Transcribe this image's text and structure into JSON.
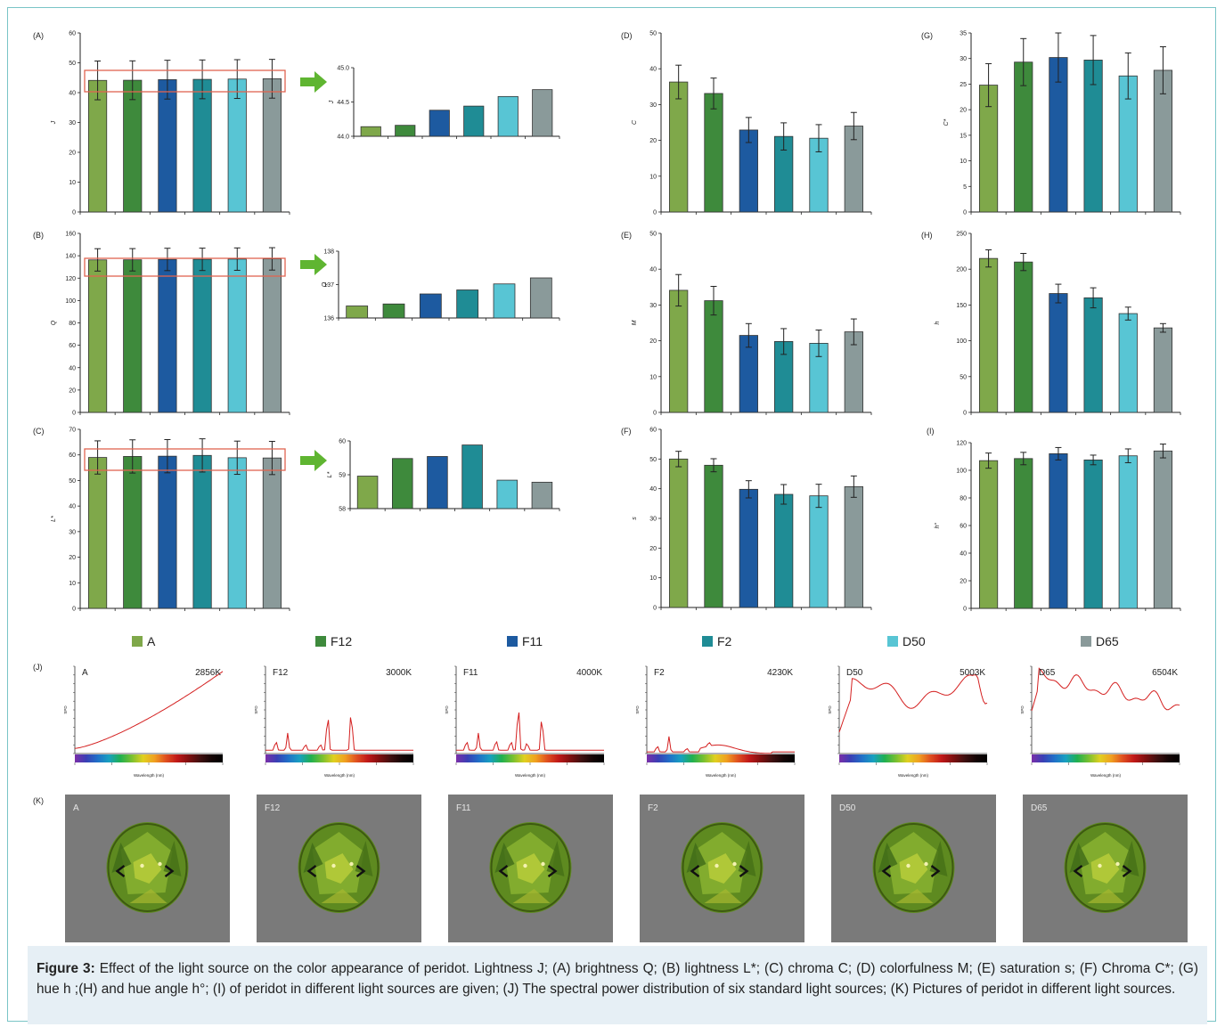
{
  "colors": {
    "A": "#7fa84a",
    "F12": "#3e8a3c",
    "F11": "#1d5aa0",
    "F2": "#1f8c95",
    "D50": "#58c5d4",
    "D65": "#8a9a9a"
  },
  "legend": [
    "A",
    "F12",
    "F11",
    "F2",
    "D50",
    "D65"
  ],
  "caption": {
    "label": "Figure 3:",
    "text": "Effect of the light source on the color appearance of peridot. Lightness J; (A) brightness Q; (B) lightness L*; (C) chroma C; (D) colorfulness M; (E) saturation s; (F) Chroma C*; (G) hue h ;(H) and hue angle h°; (I) of peridot in different light sources are given; (J) The spectral power distribution of six standard light sources; (K) Pictures of peridot in different light sources."
  },
  "chart_data": [
    {
      "panel": "(A)",
      "type": "bar",
      "ylabel": "J",
      "categories": [
        "A",
        "F12",
        "F11",
        "F2",
        "D50",
        "D65"
      ],
      "values": [
        44.1,
        44.15,
        44.35,
        44.45,
        44.55,
        44.65
      ],
      "errors": [
        6.5,
        6.5,
        6.5,
        6.5,
        6.5,
        6.5
      ],
      "ylim": [
        0,
        60
      ],
      "ticks": [
        0,
        10,
        20,
        30,
        40,
        50,
        60
      ]
    },
    {
      "panel": "(A-inset)",
      "type": "bar",
      "ylabel": "J",
      "categories": [
        "A",
        "F12",
        "F11",
        "F2",
        "D50",
        "D65"
      ],
      "values": [
        44.14,
        44.16,
        44.38,
        44.44,
        44.58,
        44.68
      ],
      "ylim": [
        44.0,
        45.0
      ],
      "ticks": [
        44.0,
        44.5,
        45.0
      ]
    },
    {
      "panel": "(B)",
      "type": "bar",
      "ylabel": "Q",
      "categories": [
        "A",
        "F12",
        "F11",
        "F2",
        "D50",
        "D65"
      ],
      "values": [
        136.3,
        136.4,
        136.7,
        136.8,
        137.0,
        137.2
      ],
      "errors": [
        10,
        10,
        10,
        10,
        10,
        10
      ],
      "ylim": [
        0,
        160
      ],
      "ticks": [
        0,
        20,
        40,
        60,
        80,
        100,
        120,
        140,
        160
      ]
    },
    {
      "panel": "(B-inset)",
      "type": "bar",
      "ylabel": "Q",
      "categories": [
        "A",
        "F12",
        "F11",
        "F2",
        "D50",
        "D65"
      ],
      "values": [
        136.36,
        136.42,
        136.72,
        136.84,
        137.02,
        137.2
      ],
      "ylim": [
        136,
        138
      ],
      "ticks": [
        136,
        137,
        138
      ]
    },
    {
      "panel": "(C)",
      "type": "bar",
      "ylabel": "L*",
      "categories": [
        "A",
        "F12",
        "F11",
        "F2",
        "D50",
        "D65"
      ],
      "values": [
        59.0,
        59.4,
        59.5,
        59.8,
        58.9,
        58.8
      ],
      "errors": [
        6.5,
        6.5,
        6.5,
        6.5,
        6.5,
        6.5
      ],
      "ylim": [
        0,
        70
      ],
      "ticks": [
        0,
        10,
        20,
        30,
        40,
        50,
        60,
        70
      ]
    },
    {
      "panel": "(C-inset)",
      "type": "bar",
      "ylabel": "L*",
      "categories": [
        "A",
        "F12",
        "F11",
        "F2",
        "D50",
        "D65"
      ],
      "values": [
        58.96,
        59.48,
        59.54,
        59.88,
        58.84,
        58.78
      ],
      "ylim": [
        58,
        60
      ],
      "ticks": [
        58,
        59,
        60
      ]
    },
    {
      "panel": "(D)",
      "type": "bar",
      "ylabel": "C",
      "categories": [
        "A",
        "F12",
        "F11",
        "F2",
        "D50",
        "D65"
      ],
      "values": [
        36.3,
        33.1,
        22.9,
        21.1,
        20.6,
        24.0
      ],
      "errors": [
        4.7,
        4.3,
        3.5,
        3.8,
        3.8,
        3.8
      ],
      "ylim": [
        0,
        50
      ],
      "ticks": [
        0,
        10,
        20,
        30,
        40,
        50
      ]
    },
    {
      "panel": "(E)",
      "type": "bar",
      "ylabel": "M",
      "categories": [
        "A",
        "F12",
        "F11",
        "F2",
        "D50",
        "D65"
      ],
      "values": [
        34.1,
        31.2,
        21.5,
        19.8,
        19.3,
        22.5
      ],
      "errors": [
        4.4,
        4.0,
        3.3,
        3.6,
        3.7,
        3.6
      ],
      "ylim": [
        0,
        50
      ],
      "ticks": [
        0,
        10,
        20,
        30,
        40,
        50
      ]
    },
    {
      "panel": "(F)",
      "type": "bar",
      "ylabel": "s",
      "categories": [
        "A",
        "F12",
        "F11",
        "F2",
        "D50",
        "D65"
      ],
      "values": [
        50.0,
        47.9,
        39.8,
        38.1,
        37.6,
        40.7
      ],
      "errors": [
        2.6,
        2.2,
        2.9,
        3.3,
        3.9,
        3.6
      ],
      "ylim": [
        0,
        60
      ],
      "ticks": [
        0,
        10,
        20,
        30,
        40,
        50,
        60
      ]
    },
    {
      "panel": "(G)",
      "type": "bar",
      "ylabel": "C*",
      "categories": [
        "A",
        "F12",
        "F11",
        "F2",
        "D50",
        "D65"
      ],
      "values": [
        24.8,
        29.3,
        30.2,
        29.7,
        26.6,
        27.7
      ],
      "errors": [
        4.2,
        4.6,
        4.8,
        4.8,
        4.5,
        4.6
      ],
      "ylim": [
        0,
        35
      ],
      "ticks": [
        0,
        5,
        10,
        15,
        20,
        25,
        30,
        35
      ]
    },
    {
      "panel": "(H)",
      "type": "bar",
      "ylabel": "h",
      "categories": [
        "A",
        "F12",
        "F11",
        "F2",
        "D50",
        "D65"
      ],
      "values": [
        215,
        210,
        166,
        160,
        138,
        118
      ],
      "errors": [
        12,
        12,
        13,
        14,
        9,
        6
      ],
      "ylim": [
        0,
        250
      ],
      "ticks": [
        0,
        50,
        100,
        150,
        200,
        250
      ]
    },
    {
      "panel": "(I)",
      "type": "bar",
      "ylabel": "h°",
      "categories": [
        "A",
        "F12",
        "F11",
        "F2",
        "D50",
        "D65"
      ],
      "values": [
        107.0,
        108.5,
        112.0,
        107.5,
        110.5,
        114.0
      ],
      "errors": [
        5.5,
        4.5,
        4.5,
        3.5,
        5.0,
        5.0
      ],
      "ylim": [
        0,
        120
      ],
      "ticks": [
        0,
        20,
        40,
        60,
        80,
        100,
        120
      ]
    },
    {
      "panel": "(J)",
      "type": "line",
      "series": [
        {
          "name": "A",
          "temp": "2856K",
          "curve": "planck"
        },
        {
          "name": "F12",
          "temp": "3000K",
          "curve": "fluor1"
        },
        {
          "name": "F11",
          "temp": "4000K",
          "curve": "fluor2"
        },
        {
          "name": "F2",
          "temp": "4230K",
          "curve": "fluor3"
        },
        {
          "name": "D50",
          "temp": "5003K",
          "curve": "daylight1"
        },
        {
          "name": "D65",
          "temp": "6504K",
          "curve": "daylight2"
        }
      ],
      "xlabel": "Wavelength (nm)",
      "ylabel": "SPD"
    }
  ],
  "panel_k": {
    "label": "(K)",
    "titles": [
      "A",
      "F12",
      "F11",
      "F2",
      "D50",
      "D65"
    ]
  }
}
